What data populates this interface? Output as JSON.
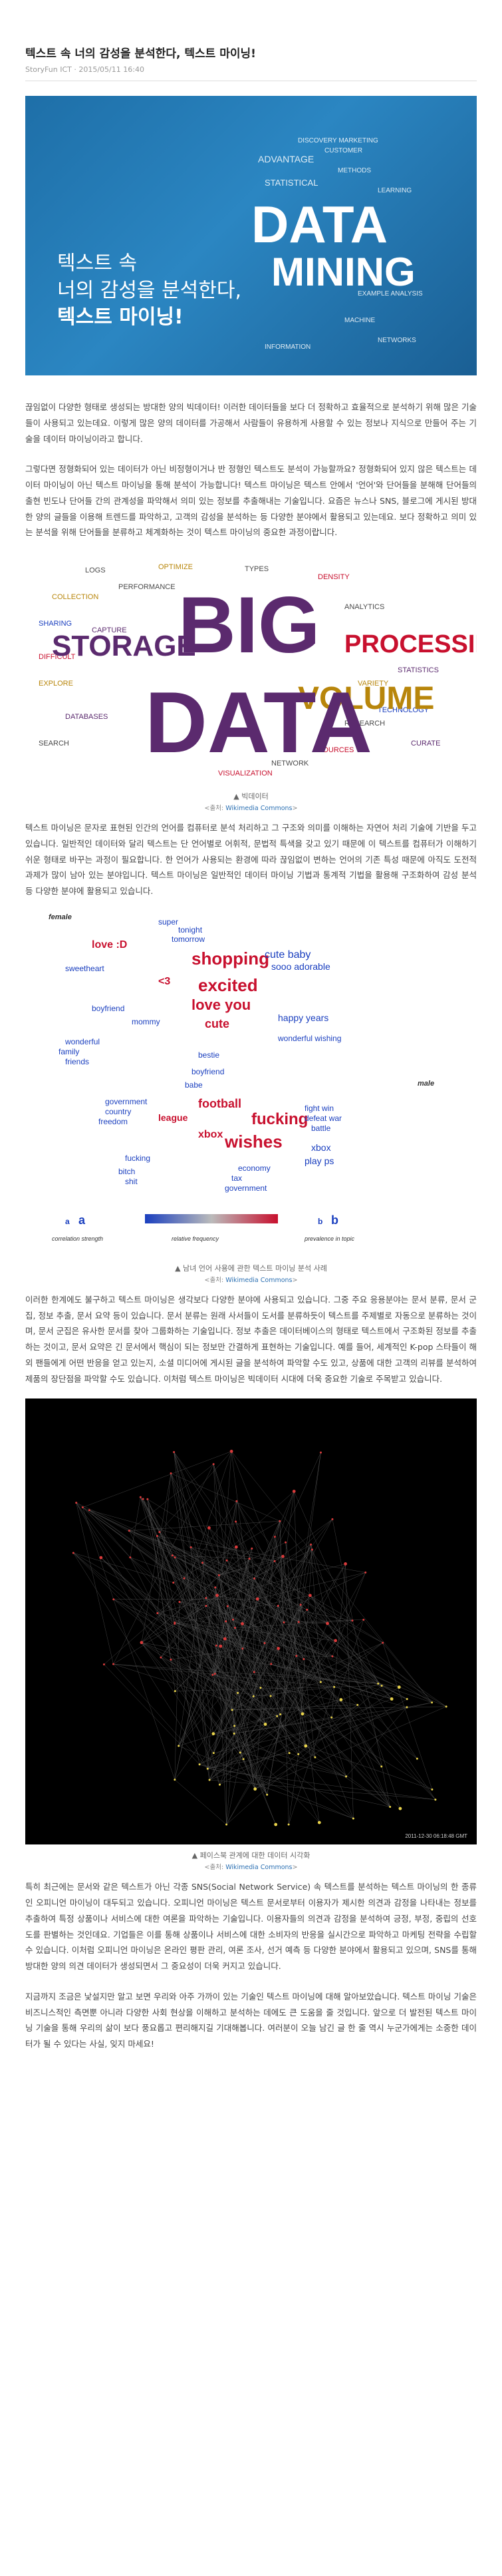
{
  "title": "텍스트 속 너의 감성을 분석한다, 텍스트 마이닝!",
  "meta": "StoryFun ICT · 2015/05/11 16:40",
  "hero": {
    "line1": "텍스트 속",
    "line2": "너의 감성을 분석한다,",
    "line3": "텍스트 마이닝!",
    "big1": "DATA",
    "big2": "MINING"
  },
  "para1": "끊임없이 다양한 형태로 생성되는 방대한 양의 빅데이터! 이러한 데이터들을 보다 더 정확하고 효율적으로 분석하기 위해 많은 기술들이 사용되고 있는데요. 이렇게 많은 양의 데이터를 가공해서 사람들이 유용하게 사용할 수 있는 정보나 지식으로 만들어 주는 기술을 데이터 마이닝이라고 합니다.",
  "para2": "그렇다면 정형화되어 있는 데이터가 아닌 비정형이거나 반 정형인 텍스트도 분석이 가능할까요? 정형화되어 있지 않은 텍스트는 데이터 마이닝이 아닌 텍스트 마이닝을 통해 분석이 가능합니다! 텍스트 마이닝은 텍스트 안에서 '언어'와 단어들을 분해해 단어들의 출현 빈도나 단어들 간의 관계성을 파악해서 의미 있는 정보를 추출해내는 기술입니다. 요즘은 뉴스나 SNS, 블로그에 게시된 방대한 양의 글들을 이용해 트렌드를 파악하고, 고객의 감성을 분석하는 등 다양한 분야에서 활용되고 있는데요. 보다 정확하고 의미 있는 분석을 위해 단어들을 분류하고 체계화하는 것이 텍스트 마이닝의 중요한 과정이랍니다.",
  "fig1": {
    "caption": "▲ 빅데이터",
    "credit_prefix": "<출처: ",
    "credit_link": "Wikimedia Commons",
    "credit_suffix": ">"
  },
  "para3": "텍스트 마이닝은 문자로 표현된 인간의 언어를 컴퓨터로 분석 처리하고 그 구조와 의미를 이해하는 자연어 처리 기술에 기반을 두고 있습니다. 일반적인 데이터와 달리 텍스트는 단 언어별로 어휘적, 문법적 특색을 갖고 있기 때문에 이 텍스트를 컴퓨터가 이해하기 쉬운 형태로 바꾸는 과정이 필요합니다. 한 언어가 사용되는 환경에 따라 끊임없이 변하는 언어의 기존 특성 때문에 아직도 도전적 과제가 많이 남아 있는 분야입니다. 텍스트 마이닝은 일반적인 데이터 마이닝 기법과 통계적 기법을 활용해 구조화하여 감성 분석 등 다양한 분야에 활용되고 있습니다.",
  "fig2": {
    "female_label": "female",
    "male_label": "male",
    "legend1": "correlation strength",
    "legend2": "relative frequency",
    "legend3": "prevalence in topic",
    "caption": "▲ 남녀 언어 사용에 관한 텍스트 마이닝 분석 사례",
    "credit_prefix": "<출처: ",
    "credit_link": "Wikimedia Commons",
    "credit_suffix": ">"
  },
  "para4": "이러한 한계에도 불구하고 텍스트 마이닝은 생각보다 다양한 분야에 사용되고 있습니다. 그중 주요 응용분야는 문서 분류, 문서 군집, 정보 추출, 문서 요약 등이 있습니다. 문서 분류는 원래 사서들이 도서를 분류하듯이 텍스트를 주제별로 자동으로 분류하는 것이며, 문서 군집은 유사한 문서를 찾아 그룹화하는 기술입니다. 정보 추출은 데이터베이스의 형태로 텍스트에서 구조화된 정보를 추출하는 것이고, 문서 요약은 긴 문서에서 핵심이 되는 정보만 간결하게 표현하는 기술입니다. 예를 들어, 세계적인 K-pop 스타들이 해외 팬들에게 어떤 반응을 얻고 있는지, 소셜 미디어에 게시된 글을 분석하여 파악할 수도 있고, 상품에 대한 고객의 리뷰를 분석하여 제품의 장단점을 파악할 수도 있습니다. 이처럼 텍스트 마이닝은 빅데이터 시대에 더욱 중요한 기술로 주목받고 있습니다.",
  "fig3": {
    "timestamp": "2011-12-30 06:18:48 GMT",
    "caption": "▲ 페이스북 관계에 대한 데이터 시각화",
    "credit_prefix": "<출처: ",
    "credit_link": "Wikimedia Commons",
    "credit_suffix": ">"
  },
  "para5": "특히 최근에는 문서와 같은 텍스트가 아닌 각종 SNS(Social Network Service) 속 텍스트를 분석하는 텍스트 마이닝의 한 종류인 오피니언 마이닝이 대두되고 있습니다. 오피니언 마이닝은 텍스트 문서로부터 이용자가 제시한 의견과 감정을 나타내는 정보를 추출하여 특정 상품이나 서비스에 대한 여론을 파악하는 기술입니다. 이용자들의 의견과 감정을 분석하여 긍정, 부정, 중립의 선호도를 판별하는 것인데요. 기업들은 이를 통해 상품이나 서비스에 대한 소비자의 반응을 실시간으로 파악하고 마케팅 전략을 수립할 수 있습니다. 이처럼 오피니언 마이닝은 온라인 평판 관리, 여론 조사, 선거 예측 등 다양한 분야에서 활용되고 있으며, SNS를 통해 방대한 양의 의견 데이터가 생성되면서 그 중요성이 더욱 커지고 있습니다.",
  "para6": "지금까지 조금은 낯설지만 알고 보면 우리와 아주 가까이 있는 기술인 텍스트 마이닝에 대해 알아보았습니다. 텍스트 마이닝 기술은 비즈니스적인 측면뿐 아니라 다양한 사회 현상을 이해하고 분석하는 데에도 큰 도움을 줄 것입니다. 앞으로 더 발전된 텍스트 마이닝 기술을 통해 우리의 삶이 보다 풍요롭고 편리해지길 기대해봅니다. 여러분이 오늘 남긴 글 한 줄 역시 누군가에게는 소중한 데이터가 될 수 있다는 사실, 잊지 마세요!",
  "colors": {
    "hero_bg": "#2b86c2",
    "purple": "#5b2a6e",
    "gold": "#b8860b",
    "blue": "#1a3fbf",
    "red": "#c8102e"
  }
}
